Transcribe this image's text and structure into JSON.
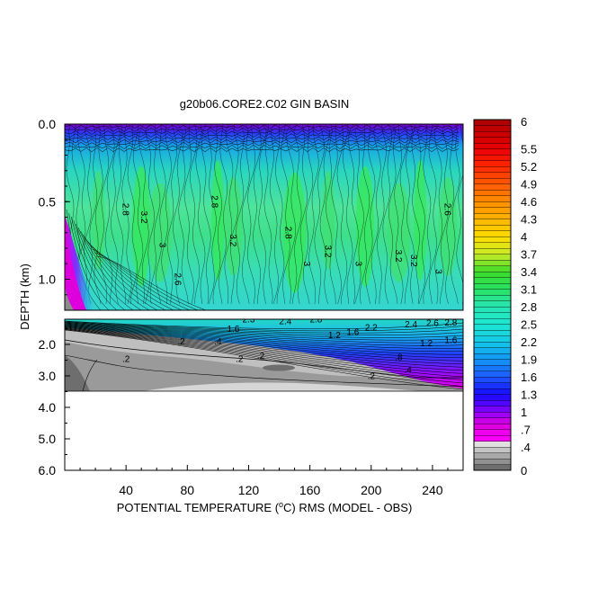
{
  "chart_data": {
    "type": "heatmap",
    "title": "g20b06.CORE2.C02 GIN BASIN",
    "xlabel": "POTENTIAL TEMPERATURE (oC) RMS (MODEL - OBS)",
    "xlabel_parts": [
      "POTENTIAL TEMPERATURE (",
      "o",
      "C) RMS (MODEL - OBS)"
    ],
    "ylabel": "DEPTH (km)",
    "x_ticks": [
      40,
      80,
      120,
      160,
      200,
      240
    ],
    "x_tick_labels": [
      "40",
      "80",
      "120",
      "160",
      "200",
      "240"
    ],
    "xlim": [
      0,
      260
    ],
    "upper_panel": {
      "ylim": [
        0.0,
        1.2
      ],
      "y_ticks": [
        0.0,
        0.5,
        1.0
      ],
      "y_tick_labels": [
        "0.0",
        "0.5",
        "1.0"
      ]
    },
    "lower_panel": {
      "ylim": [
        1.2,
        6.0
      ],
      "y_ticks": [
        2.0,
        3.0,
        4.0,
        5.0,
        6.0
      ],
      "y_tick_labels": [
        "2.0",
        "3.0",
        "4.0",
        "5.0",
        "6.0"
      ],
      "data_extent_depth": 3.4
    },
    "colorbar": {
      "tick_labels": [
        "6",
        "5.5",
        "5.2",
        "4.9",
        "4.6",
        "4.3",
        "4",
        "3.7",
        "3.4",
        "3.1",
        "2.8",
        "2.5",
        "2.2",
        "1.9",
        "1.6",
        "1.3",
        "1",
        ".7",
        ".4",
        "0"
      ],
      "levels": [
        0,
        0.1,
        0.2,
        0.3,
        0.4,
        0.5,
        0.6,
        0.7,
        0.8,
        0.9,
        1.0,
        1.1,
        1.2,
        1.3,
        1.4,
        1.5,
        1.6,
        1.7,
        1.8,
        1.9,
        2.0,
        2.1,
        2.2,
        2.3,
        2.4,
        2.5,
        2.6,
        2.7,
        2.8,
        2.9,
        3.0,
        3.1,
        3.2,
        3.3,
        3.4,
        3.5,
        3.6,
        3.7,
        3.8,
        3.9,
        4.0,
        4.1,
        4.2,
        4.3,
        4.4,
        4.5,
        4.6,
        4.7,
        4.8,
        4.9,
        5.0,
        5.1,
        5.2,
        5.3,
        5.4,
        5.5,
        5.6,
        5.7,
        5.8,
        5.9,
        6.0
      ],
      "colormap": "ncl-rainbow-with-grays-below-0.5"
    },
    "contour_labels": {
      "upper": [
        {
          "text": "2.8",
          "x": 38,
          "depth": 0.55
        },
        {
          "text": "3.2",
          "x": 50,
          "depth": 0.6
        },
        {
          "text": "3",
          "x": 62,
          "depth": 0.78
        },
        {
          "text": "2.6",
          "x": 72,
          "depth": 1.0
        },
        {
          "text": "2.8",
          "x": 96,
          "depth": 0.5
        },
        {
          "text": "3.2",
          "x": 108,
          "depth": 0.75
        },
        {
          "text": "2.8",
          "x": 144,
          "depth": 0.7
        },
        {
          "text": "3",
          "x": 156,
          "depth": 0.9
        },
        {
          "text": "3.2",
          "x": 170,
          "depth": 0.82
        },
        {
          "text": "3",
          "x": 190,
          "depth": 0.9
        },
        {
          "text": "3.2",
          "x": 216,
          "depth": 0.85
        },
        {
          "text": "3",
          "x": 242,
          "depth": 0.95
        },
        {
          "text": "2.6",
          "x": 248,
          "depth": 0.55
        },
        {
          "text": "3.2",
          "x": 226,
          "depth": 0.88
        }
      ],
      "lower": [
        {
          "text": "2.3",
          "x": 120,
          "depth": 1.3
        },
        {
          "text": "2.4",
          "x": 144,
          "depth": 1.35
        },
        {
          "text": "2.8",
          "x": 164,
          "depth": 1.3
        },
        {
          "text": "1.2",
          "x": 176,
          "depth": 1.8
        },
        {
          "text": "1.6",
          "x": 188,
          "depth": 1.7
        },
        {
          "text": "2.2",
          "x": 200,
          "depth": 1.55
        },
        {
          "text": "2.4",
          "x": 226,
          "depth": 1.45
        },
        {
          "text": "2.6",
          "x": 240,
          "depth": 1.42
        },
        {
          "text": "2.8",
          "x": 252,
          "depth": 1.4
        },
        {
          "text": "1.2",
          "x": 236,
          "depth": 2.05
        },
        {
          "text": "1.6",
          "x": 252,
          "depth": 1.95
        },
        {
          "text": ".8",
          "x": 218,
          "depth": 2.5
        },
        {
          "text": ".4",
          "x": 224,
          "depth": 2.9
        },
        {
          "text": ".2",
          "x": 40,
          "depth": 2.55
        },
        {
          "text": ".2",
          "x": 114,
          "depth": 2.55
        },
        {
          "text": ".2",
          "x": 76,
          "depth": 2.0
        },
        {
          "text": ".2",
          "x": 128,
          "depth": 2.45
        },
        {
          "text": ".2",
          "x": 200,
          "depth": 3.1
        },
        {
          "text": ".4",
          "x": 100,
          "depth": 2.0
        },
        {
          "text": "1.6",
          "x": 110,
          "depth": 1.6
        }
      ]
    }
  }
}
